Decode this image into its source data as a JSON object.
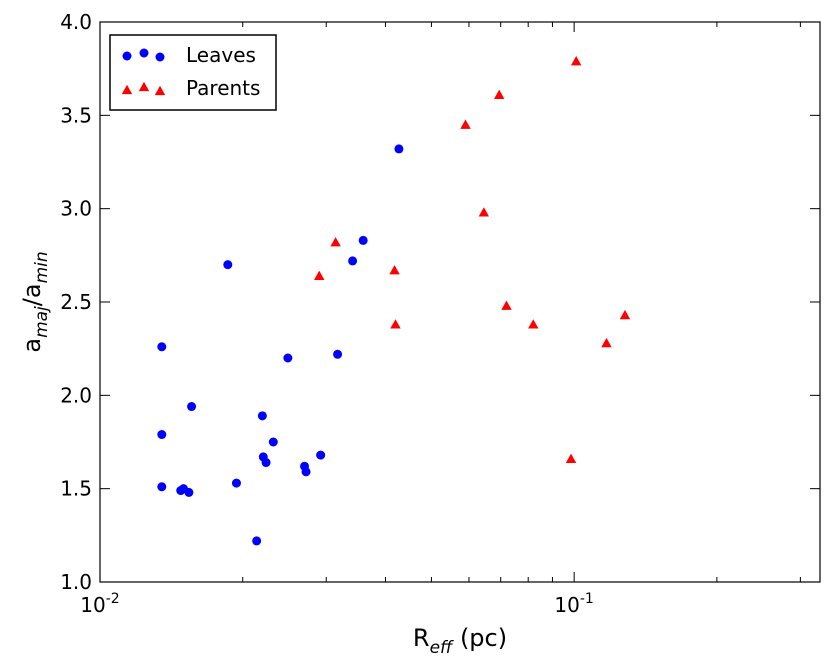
{
  "chart_data": {
    "type": "scatter",
    "title": "",
    "xscale": "log",
    "xlim": [
      0.01,
      0.33
    ],
    "ylim": [
      1.0,
      4.0
    ],
    "xlabel": {
      "main": "R",
      "sub": "eff",
      "unit": " (pc)"
    },
    "ylabel": {
      "a1": "a",
      "sub1": "maj",
      "sep": "/a",
      "sub2": "min"
    },
    "x_major_ticks": [
      {
        "value": 0.01,
        "base": "10",
        "exp": "-2"
      },
      {
        "value": 0.1,
        "base": "10",
        "exp": "-1"
      }
    ],
    "x_minor_ticks": [
      0.02,
      0.03,
      0.04,
      0.05,
      0.06,
      0.07,
      0.08,
      0.09,
      0.2,
      0.3
    ],
    "y_ticks": [
      {
        "value": 1.0,
        "label": "1.0"
      },
      {
        "value": 1.5,
        "label": "1.5"
      },
      {
        "value": 2.0,
        "label": "2.0"
      },
      {
        "value": 2.5,
        "label": "2.5"
      },
      {
        "value": 3.0,
        "label": "3.0"
      },
      {
        "value": 3.5,
        "label": "3.5"
      },
      {
        "value": 4.0,
        "label": "4.0"
      }
    ],
    "grid": false,
    "legend_position": "top-left",
    "series": [
      {
        "name": "Leaves",
        "marker": "circle",
        "color": "#0000ff",
        "points": [
          [
            0.0135,
            2.26
          ],
          [
            0.0135,
            1.79
          ],
          [
            0.0135,
            1.51
          ],
          [
            0.0148,
            1.49
          ],
          [
            0.015,
            1.5
          ],
          [
            0.0154,
            1.48
          ],
          [
            0.0156,
            1.94
          ],
          [
            0.0186,
            2.7
          ],
          [
            0.0194,
            1.53
          ],
          [
            0.0214,
            1.22
          ],
          [
            0.022,
            1.89
          ],
          [
            0.0221,
            1.67
          ],
          [
            0.0224,
            1.64
          ],
          [
            0.0232,
            1.75
          ],
          [
            0.0249,
            2.2
          ],
          [
            0.027,
            1.62
          ],
          [
            0.0272,
            1.59
          ],
          [
            0.0292,
            1.68
          ],
          [
            0.0317,
            2.22
          ],
          [
            0.0341,
            2.72
          ],
          [
            0.0359,
            2.83
          ],
          [
            0.0427,
            3.32
          ]
        ]
      },
      {
        "name": "Parents",
        "marker": "triangle",
        "color": "#ff0000",
        "points": [
          [
            0.029,
            2.64
          ],
          [
            0.0314,
            2.82
          ],
          [
            0.0418,
            2.67
          ],
          [
            0.042,
            2.38
          ],
          [
            0.059,
            3.45
          ],
          [
            0.0645,
            2.98
          ],
          [
            0.0695,
            3.61
          ],
          [
            0.072,
            2.48
          ],
          [
            0.082,
            2.38
          ],
          [
            0.0985,
            1.66
          ],
          [
            0.101,
            3.79
          ],
          [
            0.117,
            2.28
          ],
          [
            0.128,
            2.43
          ]
        ]
      }
    ]
  }
}
